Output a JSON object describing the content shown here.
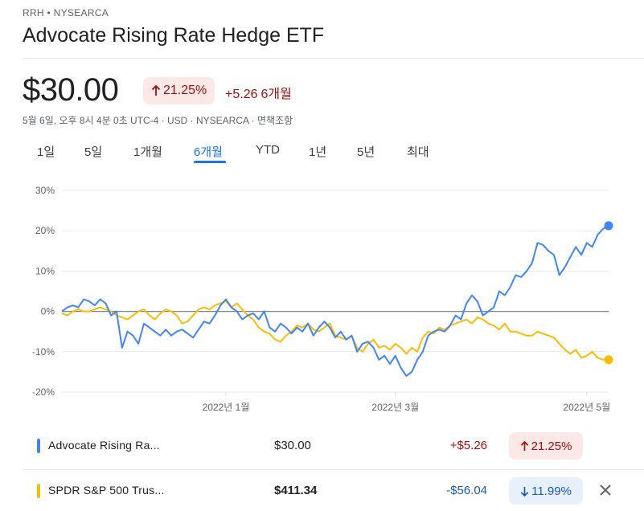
{
  "header": {
    "ticker": "RRH • NYSEARCA",
    "title": "Advocate Rising Rate Hedge ETF"
  },
  "quote": {
    "price": "$30.00",
    "pct_change": "21.25%",
    "abs_change": "+5.26",
    "period": "6개월",
    "meta": "5월 6일, 오후 8시 4분 0초 UTC-4 · USD · NYSEARCA · 면책조항"
  },
  "tabs": [
    "1일",
    "5일",
    "1개월",
    "6개월",
    "YTD",
    "1년",
    "5년",
    "최대"
  ],
  "active_tab_index": 3,
  "colors": {
    "blue_series": "#4285f4",
    "yellow_series": "#fbbc04",
    "positive": "#a50e0e",
    "negative": "#185abc",
    "active_tab": "#1a73e8"
  },
  "comparison": [
    {
      "name": "Advocate Rising Ra...",
      "value": "$30.00",
      "change": "+$5.26",
      "pct": "21.25%",
      "direction": "up",
      "color": "#4285f4",
      "bold": false
    },
    {
      "name": "SPDR S&P 500 Trus...",
      "value": "$411.34",
      "change": "-$56.04",
      "pct": "11.99%",
      "direction": "down",
      "color": "#fbbc04",
      "bold": true
    }
  ],
  "chart_data": {
    "type": "line",
    "y_ticks": [
      "30%",
      "20%",
      "10%",
      "0%",
      "-10%",
      "-20%"
    ],
    "x_ticks": [
      "2022년 1월",
      "2022년 3월",
      "2022년 5월"
    ],
    "ylim": [
      -20,
      30
    ],
    "xlim": [
      0,
      100
    ],
    "x_tick_positions": [
      30,
      61,
      96
    ],
    "series": [
      {
        "name": "Advocate Rising Ra...",
        "color": "#4285f4",
        "points": [
          [
            0,
            0
          ],
          [
            1,
            1
          ],
          [
            2,
            1.5
          ],
          [
            3,
            1
          ],
          [
            4,
            3
          ],
          [
            5,
            2.5
          ],
          [
            6,
            1.5
          ],
          [
            7,
            3
          ],
          [
            8,
            2
          ],
          [
            9,
            -1
          ],
          [
            10,
            0
          ],
          [
            11,
            -9
          ],
          [
            12,
            -5
          ],
          [
            13,
            -6
          ],
          [
            14,
            -8
          ],
          [
            15,
            -3
          ],
          [
            16,
            -4
          ],
          [
            17,
            -5
          ],
          [
            18,
            -6
          ],
          [
            19,
            -4.5
          ],
          [
            20,
            -6
          ],
          [
            21,
            -5
          ],
          [
            22,
            -4.5
          ],
          [
            23,
            -5.5
          ],
          [
            24,
            -6.5
          ],
          [
            25,
            -4.5
          ],
          [
            26,
            -2.5
          ],
          [
            27,
            -3
          ],
          [
            28,
            -1
          ],
          [
            29,
            1.5
          ],
          [
            30,
            3
          ],
          [
            31,
            1
          ],
          [
            32,
            0
          ],
          [
            33,
            -2
          ],
          [
            34,
            -1
          ],
          [
            35,
            -0.5
          ],
          [
            36,
            -2
          ],
          [
            37,
            0
          ],
          [
            38,
            -4
          ],
          [
            39,
            -5
          ],
          [
            40,
            -3
          ],
          [
            41,
            -4
          ],
          [
            42,
            -5.5
          ],
          [
            43,
            -4
          ],
          [
            44,
            -5
          ],
          [
            45,
            -3
          ],
          [
            46,
            -6
          ],
          [
            47,
            -4
          ],
          [
            48,
            -2.5
          ],
          [
            49,
            -4
          ],
          [
            50,
            -6.5
          ],
          [
            51,
            -5
          ],
          [
            52,
            -7
          ],
          [
            53,
            -6
          ],
          [
            54,
            -10
          ],
          [
            55,
            -8
          ],
          [
            56,
            -7.5
          ],
          [
            57,
            -9
          ],
          [
            58,
            -12
          ],
          [
            59,
            -11
          ],
          [
            60,
            -13
          ],
          [
            61,
            -11
          ],
          [
            62,
            -14
          ],
          [
            63,
            -16
          ],
          [
            64,
            -15
          ],
          [
            65,
            -12
          ],
          [
            66,
            -10
          ],
          [
            67,
            -6
          ],
          [
            68,
            -5
          ],
          [
            69,
            -4.5
          ],
          [
            70,
            -5
          ],
          [
            71,
            -3.5
          ],
          [
            72,
            -1
          ],
          [
            73,
            -2
          ],
          [
            74,
            2
          ],
          [
            75,
            4
          ],
          [
            76,
            2.5
          ],
          [
            77,
            -1
          ],
          [
            78,
            0
          ],
          [
            79,
            1
          ],
          [
            80,
            5
          ],
          [
            81,
            4
          ],
          [
            82,
            6
          ],
          [
            83,
            9
          ],
          [
            84,
            8.5
          ],
          [
            85,
            10
          ],
          [
            86,
            12
          ],
          [
            87,
            17
          ],
          [
            88,
            16.5
          ],
          [
            89,
            15
          ],
          [
            90,
            14
          ],
          [
            91,
            9
          ],
          [
            92,
            11
          ],
          [
            93,
            13.5
          ],
          [
            94,
            16
          ],
          [
            95,
            14
          ],
          [
            96,
            17
          ],
          [
            97,
            16
          ],
          [
            98,
            19
          ],
          [
            99,
            20.5
          ],
          [
            100,
            21.25
          ]
        ]
      },
      {
        "name": "SPDR S&P 500 Trus...",
        "color": "#fbbc04",
        "points": [
          [
            0,
            -0.5
          ],
          [
            1,
            -1
          ],
          [
            2,
            0
          ],
          [
            3,
            0.5
          ],
          [
            4,
            0
          ],
          [
            5,
            0
          ],
          [
            6,
            0.5
          ],
          [
            7,
            1
          ],
          [
            8,
            0.5
          ],
          [
            9,
            0
          ],
          [
            10,
            -1
          ],
          [
            11,
            -1.5
          ],
          [
            12,
            -2
          ],
          [
            13,
            -1
          ],
          [
            14,
            0
          ],
          [
            15,
            0.5
          ],
          [
            16,
            -1
          ],
          [
            17,
            -2
          ],
          [
            18,
            -0.5
          ],
          [
            19,
            0.5
          ],
          [
            20,
            0
          ],
          [
            21,
            -1
          ],
          [
            22,
            -3
          ],
          [
            23,
            -2.5
          ],
          [
            24,
            -1
          ],
          [
            25,
            0.5
          ],
          [
            26,
            1
          ],
          [
            27,
            0.5
          ],
          [
            28,
            1.5
          ],
          [
            29,
            2
          ],
          [
            30,
            2.5
          ],
          [
            31,
            1
          ],
          [
            32,
            2
          ],
          [
            33,
            0.5
          ],
          [
            34,
            -1
          ],
          [
            35,
            -2
          ],
          [
            36,
            -4
          ],
          [
            37,
            -5
          ],
          [
            38,
            -5.5
          ],
          [
            39,
            -7
          ],
          [
            40,
            -7.5
          ],
          [
            41,
            -6
          ],
          [
            42,
            -5
          ],
          [
            43,
            -3.5
          ],
          [
            44,
            -4
          ],
          [
            45,
            -3
          ],
          [
            46,
            -4.5
          ],
          [
            47,
            -5
          ],
          [
            48,
            -4
          ],
          [
            49,
            -3
          ],
          [
            50,
            -6
          ],
          [
            51,
            -6.5
          ],
          [
            52,
            -7
          ],
          [
            53,
            -6
          ],
          [
            54,
            -9
          ],
          [
            55,
            -10
          ],
          [
            56,
            -8
          ],
          [
            57,
            -7
          ],
          [
            58,
            -9
          ],
          [
            59,
            -8.5
          ],
          [
            60,
            -9.5
          ],
          [
            61,
            -8
          ],
          [
            62,
            -9
          ],
          [
            63,
            -10.5
          ],
          [
            64,
            -9
          ],
          [
            65,
            -10
          ],
          [
            66,
            -6.5
          ],
          [
            67,
            -5
          ],
          [
            68,
            -5.5
          ],
          [
            69,
            -4
          ],
          [
            70,
            -4.5
          ],
          [
            71,
            -3.5
          ],
          [
            72,
            -3
          ],
          [
            73,
            -2.5
          ],
          [
            74,
            -2
          ],
          [
            75,
            -3
          ],
          [
            76,
            -1.5
          ],
          [
            77,
            -2
          ],
          [
            78,
            -3
          ],
          [
            79,
            -3.5
          ],
          [
            80,
            -4.5
          ],
          [
            81,
            -3
          ],
          [
            82,
            -5
          ],
          [
            83,
            -5
          ],
          [
            84,
            -5.5
          ],
          [
            85,
            -6
          ],
          [
            86,
            -6
          ],
          [
            87,
            -5
          ],
          [
            88,
            -5.5
          ],
          [
            89,
            -6
          ],
          [
            90,
            -6.5
          ],
          [
            91,
            -8
          ],
          [
            92,
            -9.5
          ],
          [
            93,
            -10.5
          ],
          [
            94,
            -9.5
          ],
          [
            95,
            -11.5
          ],
          [
            96,
            -11
          ],
          [
            97,
            -10
          ],
          [
            98,
            -11.5
          ],
          [
            99,
            -12
          ],
          [
            100,
            -11.99
          ]
        ]
      }
    ]
  }
}
